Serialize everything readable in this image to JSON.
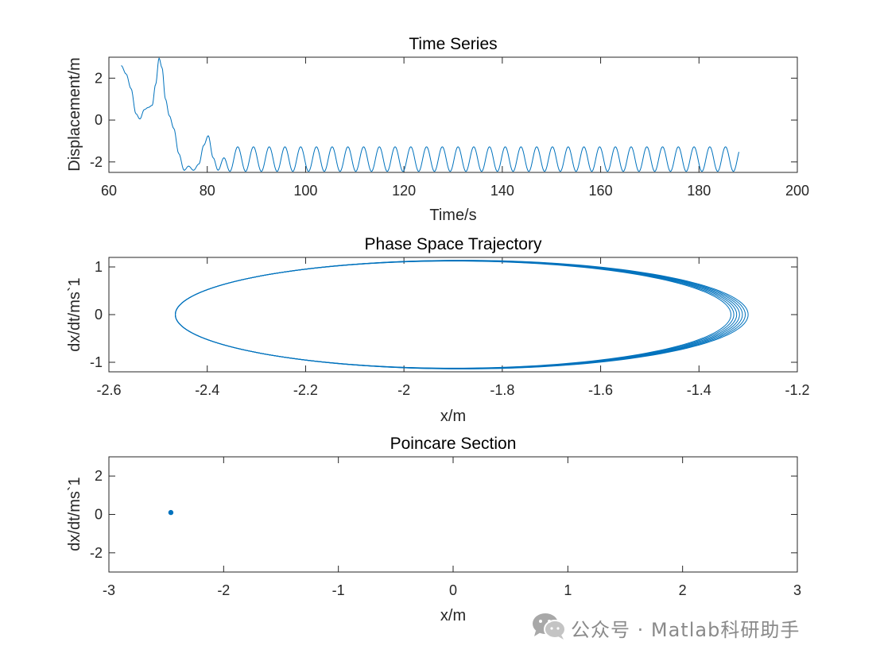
{
  "chart_data": [
    {
      "type": "line",
      "title": "Time Series",
      "xlabel": "Time/s",
      "ylabel": "Displacement/m",
      "xlim": [
        60,
        200
      ],
      "ylim": [
        -2.5,
        3
      ],
      "xticks": [
        "60",
        "80",
        "100",
        "120",
        "140",
        "160",
        "180",
        "200"
      ],
      "yticks": [
        "-2",
        "0",
        "2"
      ],
      "color": "#0072BD",
      "series": [
        {
          "transient": [
            [
              62.5,
              2.6
            ],
            [
              63.5,
              2.2
            ],
            [
              64.5,
              1.5
            ],
            [
              65.5,
              0.3
            ],
            [
              66.3,
              0.05
            ],
            [
              67.2,
              0.5
            ],
            [
              68.0,
              0.6
            ],
            [
              68.8,
              0.7
            ],
            [
              69.5,
              1.7
            ],
            [
              70.2,
              2.95
            ],
            [
              70.8,
              2.5
            ],
            [
              71.5,
              1.0
            ],
            [
              72.3,
              0.2
            ],
            [
              73.2,
              -0.4
            ],
            [
              74.2,
              -1.6
            ],
            [
              75.3,
              -2.4
            ],
            [
              76.2,
              -2.2
            ],
            [
              77.2,
              -2.4
            ],
            [
              78.3,
              -2.1
            ],
            [
              79.3,
              -1.2
            ],
            [
              80.2,
              -0.75
            ],
            [
              81.2,
              -1.8
            ],
            [
              82.2,
              -2.4
            ],
            [
              83.4,
              -1.8
            ],
            [
              84.6,
              -2.45
            ]
          ],
          "steady_start": 84.6,
          "steady_end": 188.2,
          "period": 3.2,
          "min": -2.45,
          "max": -1.28
        }
      ]
    },
    {
      "type": "line",
      "title": "Phase Space Trajectory",
      "xlabel": "x/m",
      "ylabel": "dx/dt/ms`1",
      "xlim": [
        -2.6,
        -1.2
      ],
      "ylim": [
        -1.2,
        1.2
      ],
      "xticks": [
        "-2.6",
        "-2.4",
        "-2.2",
        "-2",
        "-1.8",
        "-1.6",
        "-1.4",
        "-1.2"
      ],
      "yticks": [
        "-1",
        "0",
        "1"
      ],
      "color": "#0072BD",
      "series": [
        {
          "x_min": -2.465,
          "x_max": -1.3,
          "x_max_spread": [
            -1.335,
            -1.3
          ],
          "v_amplitude": 1.14
        }
      ]
    },
    {
      "type": "scatter",
      "title": "Poincare Section",
      "xlabel": "x/m",
      "ylabel": "dx/dt/ms`1",
      "xlim": [
        -3,
        3
      ],
      "ylim": [
        -3,
        3
      ],
      "xticks": [
        "-3",
        "-2",
        "-1",
        "0",
        "1",
        "2",
        "3"
      ],
      "yticks": [
        "-2",
        "0",
        "2"
      ],
      "color": "#0072BD",
      "series": [
        {
          "points": [
            [
              -2.46,
              0.1
            ]
          ]
        }
      ]
    }
  ],
  "watermark": {
    "text": "公众号 · Matlab科研助手",
    "icon": "wechat-icon"
  }
}
